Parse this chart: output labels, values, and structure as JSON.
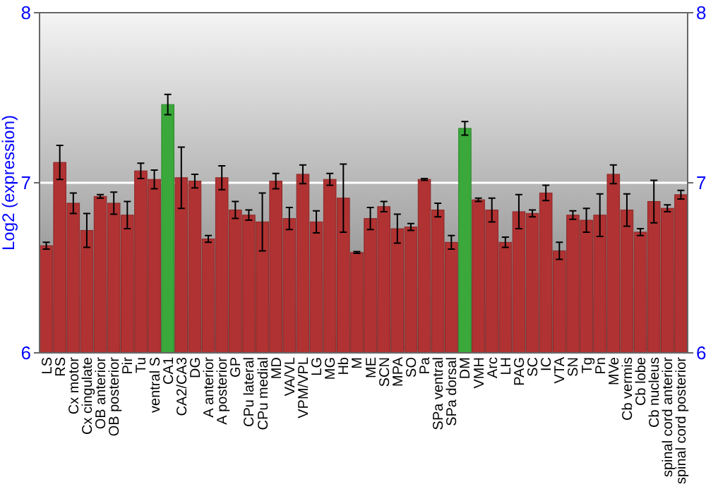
{
  "chart_data": {
    "type": "bar",
    "ylabel": "Log2 (expression)",
    "categories": [
      "LS",
      "RS",
      "Cx motor",
      "Cx cingulate",
      "OB anterior",
      "OB posterior",
      "Pir",
      "Tu",
      "ventral S",
      "CA1",
      "CA2/CA3",
      "DG",
      "A anterior",
      "A posterior",
      "GP",
      "CPu lateral",
      "CPu medial",
      "MD",
      "VA/VL",
      "VPM/VPL",
      "LG",
      "MG",
      "Hb",
      "M",
      "ME",
      "SCN",
      "MPA",
      "SO",
      "Pa",
      "SPa ventral",
      "SPa dorsal",
      "DM",
      "VMH",
      "Arc",
      "LH",
      "PAG",
      "SC",
      "IC",
      "VTA",
      "SN",
      "Tg",
      "Pn",
      "MVe",
      "Cb vermis",
      "Cb lobe",
      "Cb nucleus",
      "spinal cord anterior",
      "spinal cord posterior"
    ],
    "values": [
      6.63,
      7.12,
      6.88,
      6.72,
      6.92,
      6.88,
      6.81,
      7.07,
      7.02,
      7.46,
      7.03,
      7.01,
      6.67,
      7.03,
      6.84,
      6.81,
      6.77,
      7.01,
      6.79,
      7.05,
      6.77,
      7.02,
      6.91,
      6.59,
      6.79,
      6.86,
      6.73,
      6.74,
      7.02,
      6.84,
      6.65,
      7.32,
      6.9,
      6.84,
      6.65,
      6.83,
      6.82,
      6.94,
      6.6,
      6.81,
      6.78,
      6.81,
      7.05,
      6.84,
      6.71,
      6.89,
      6.85,
      6.93
    ],
    "errors": [
      0.02,
      0.1,
      0.06,
      0.1,
      0.01,
      0.065,
      0.08,
      0.045,
      0.055,
      0.06,
      0.18,
      0.04,
      0.02,
      0.07,
      0.05,
      0.03,
      0.17,
      0.045,
      0.065,
      0.055,
      0.065,
      0.035,
      0.2,
      0.005,
      0.065,
      0.03,
      0.085,
      0.02,
      0.005,
      0.04,
      0.04,
      0.04,
      0.01,
      0.07,
      0.03,
      0.1,
      0.02,
      0.045,
      0.05,
      0.025,
      0.07,
      0.125,
      0.055,
      0.095,
      0.02,
      0.125,
      0.02,
      0.025
    ],
    "colors": [
      "#b03232",
      "#b03232",
      "#b03232",
      "#b03232",
      "#b03232",
      "#b03232",
      "#b03232",
      "#b03232",
      "#b03232",
      "#3aa83a",
      "#b03232",
      "#b03232",
      "#b03232",
      "#b03232",
      "#b03232",
      "#b03232",
      "#b03232",
      "#b03232",
      "#b03232",
      "#b03232",
      "#b03232",
      "#b03232",
      "#b03232",
      "#b03232",
      "#b03232",
      "#b03232",
      "#b03232",
      "#b03232",
      "#b03232",
      "#b03232",
      "#b03232",
      "#3aa83a",
      "#b03232",
      "#b03232",
      "#b03232",
      "#b03232",
      "#b03232",
      "#b03232",
      "#b03232",
      "#b03232",
      "#b03232",
      "#b03232",
      "#b03232",
      "#b03232",
      "#b03232",
      "#b03232",
      "#b03232",
      "#b03232"
    ],
    "ylim": [
      6,
      8
    ],
    "yticks": [
      6,
      7,
      8
    ],
    "y2lim": [
      6,
      8
    ],
    "y2ticks": [
      6,
      7,
      8
    ],
    "grid": "y"
  }
}
